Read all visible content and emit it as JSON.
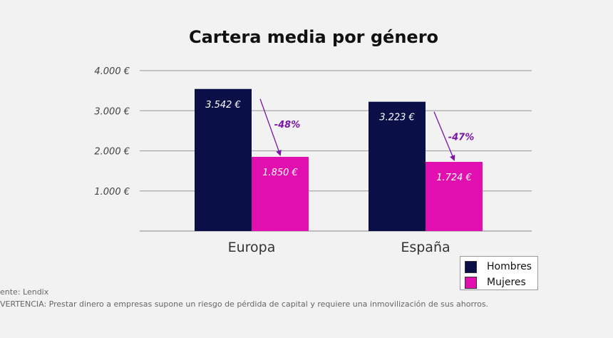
{
  "chart_data": {
    "type": "bar",
    "title": "Cartera media por género",
    "categories": [
      "Europa",
      "España"
    ],
    "series": [
      {
        "name": "Hombres",
        "color": "#0b0f47",
        "values": [
          3542,
          3223
        ],
        "labels": [
          "3.542 €",
          "3.223 €"
        ]
      },
      {
        "name": "Mujeres",
        "color": "#e10fb0",
        "values": [
          1850,
          1724
        ],
        "labels": [
          "1.850 €",
          "1.724 €"
        ]
      }
    ],
    "differences": [
      "-48%",
      "-47%"
    ],
    "difference_color": "#7a16a8",
    "yticks": [
      {
        "value": 1000,
        "label": "1.000 €"
      },
      {
        "value": 2000,
        "label": "2.000 €"
      },
      {
        "value": 3000,
        "label": "3.000 €"
      },
      {
        "value": 4000,
        "label": "4.000 €"
      }
    ],
    "ylim": [
      0,
      4000
    ],
    "grid": true,
    "legend_position": "bottom-right"
  },
  "footnotes": {
    "source": "ente: Lendix",
    "warning": "VERTENCIA: Prestar dinero a empresas supone un riesgo de pérdida de capital y requiere una inmovilización de sus ahorros."
  }
}
